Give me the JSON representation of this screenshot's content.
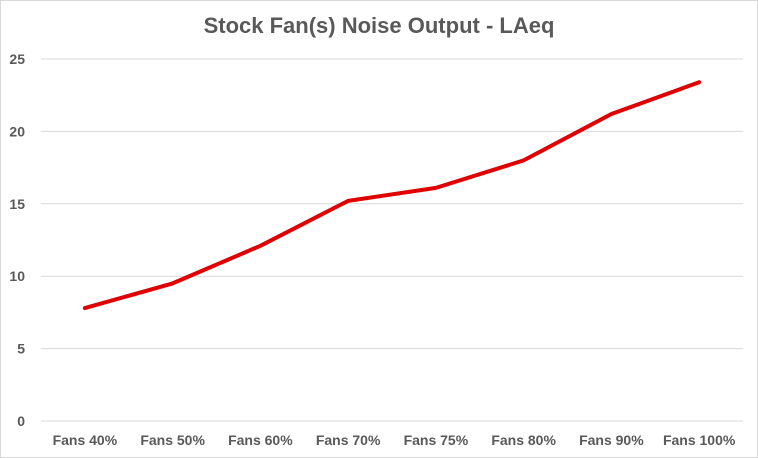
{
  "chart_data": {
    "type": "line",
    "title": "Stock Fan(s) Noise Output - LAeq",
    "xlabel": "",
    "ylabel": "",
    "categories": [
      "Fans 40%",
      "Fans 50%",
      "Fans 60%",
      "Fans 70%",
      "Fans 75%",
      "Fans 80%",
      "Fans 90%",
      "Fans 100%"
    ],
    "series": [
      {
        "values": [
          7.8,
          9.5,
          12.1,
          15.2,
          16.1,
          18.0,
          21.2,
          23.4
        ],
        "color": "#e00000"
      }
    ],
    "ylim": [
      0,
      25
    ],
    "yticks": [
      0,
      5,
      10,
      15,
      20,
      25
    ],
    "grid": true,
    "legend": "none"
  }
}
